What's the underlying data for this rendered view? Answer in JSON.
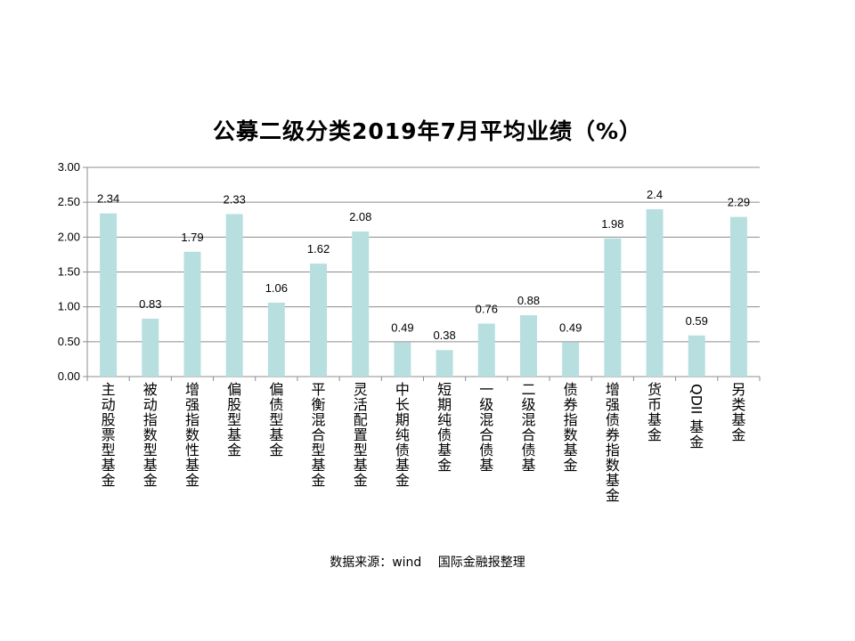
{
  "chart_data": {
    "type": "bar",
    "title": "公募二级分类2019年7月平均业绩（%）",
    "xlabel": "",
    "ylabel": "",
    "ylim": [
      0,
      3
    ],
    "yticks": [
      "0.00",
      "0.50",
      "1.00",
      "1.50",
      "2.00",
      "2.50",
      "3.00"
    ],
    "grid": true,
    "legend": "none",
    "bar_color": "#b7dfe0",
    "categories": [
      "主动股票型基金",
      "被动指数型基金",
      "增强指数性基金",
      "偏股型基金",
      "偏债型基金",
      "平衡混合型基金",
      "灵活配置型基金",
      "中长期纯债基金",
      "短期纯债基金",
      "一级混合债基",
      "二级混合债基",
      "债券指数基金",
      "增强债券指数基金",
      "货币基金",
      "QDII基金",
      "另类基金"
    ],
    "values": [
      2.34,
      0.83,
      1.79,
      2.33,
      1.06,
      1.62,
      2.08,
      0.49,
      0.38,
      0.76,
      0.88,
      0.49,
      1.98,
      2.4,
      0.59,
      2.29
    ],
    "data_labels": [
      "2.34",
      "0.83",
      "1.79",
      "2.33",
      "1.06",
      "1.62",
      "2.08",
      "0.49",
      "0.38",
      "0.76",
      "0.88",
      "0.49",
      "1.98",
      "2.4",
      "0.59",
      "2.29"
    ]
  },
  "source_note": "数据来源：wind　 国际金融报整理"
}
